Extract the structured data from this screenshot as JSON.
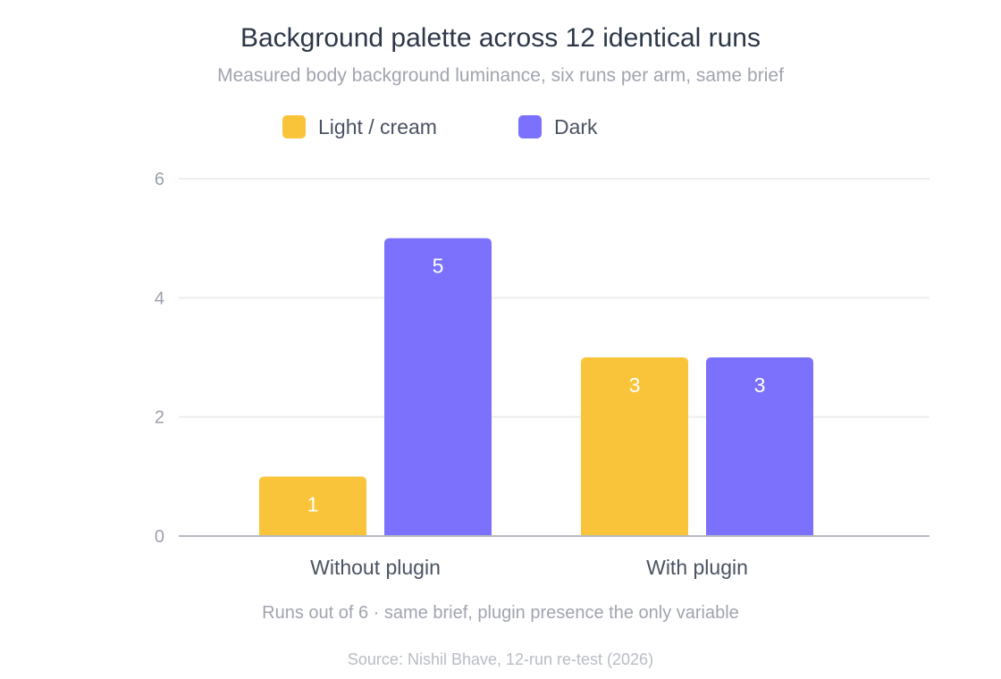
{
  "chart_data": {
    "type": "bar",
    "title": "Background palette across 12 identical runs",
    "subtitle": "Measured body background luminance, six runs per arm, same brief",
    "categories": [
      "Without plugin",
      "With plugin"
    ],
    "series": [
      {
        "name": "Light / cream",
        "color": "#F9C43A",
        "values": [
          1,
          3
        ]
      },
      {
        "name": "Dark",
        "color": "#7B71FC",
        "values": [
          5,
          3
        ]
      }
    ],
    "ylim": [
      0,
      6
    ],
    "yticks": [
      0,
      2,
      4,
      6
    ],
    "xlabel": "Runs out of 6 · same brief, plugin presence the only variable",
    "ylabel": "",
    "grid": true,
    "legend_position": "top-center",
    "source": "Source: Nishil Bhave, 12-run re-test (2026)",
    "colors": {
      "title": "#2D3748",
      "subtitle": "#A0A4AE",
      "axis_text": "#9AA0AB",
      "category_text": "#4A5261",
      "gridline": "#ECEDF0",
      "baseline": "#B6BAC2",
      "label_inside": "#FFFFFF",
      "label_outside": "#4A5261",
      "source_text": "#B8BCC4"
    }
  }
}
